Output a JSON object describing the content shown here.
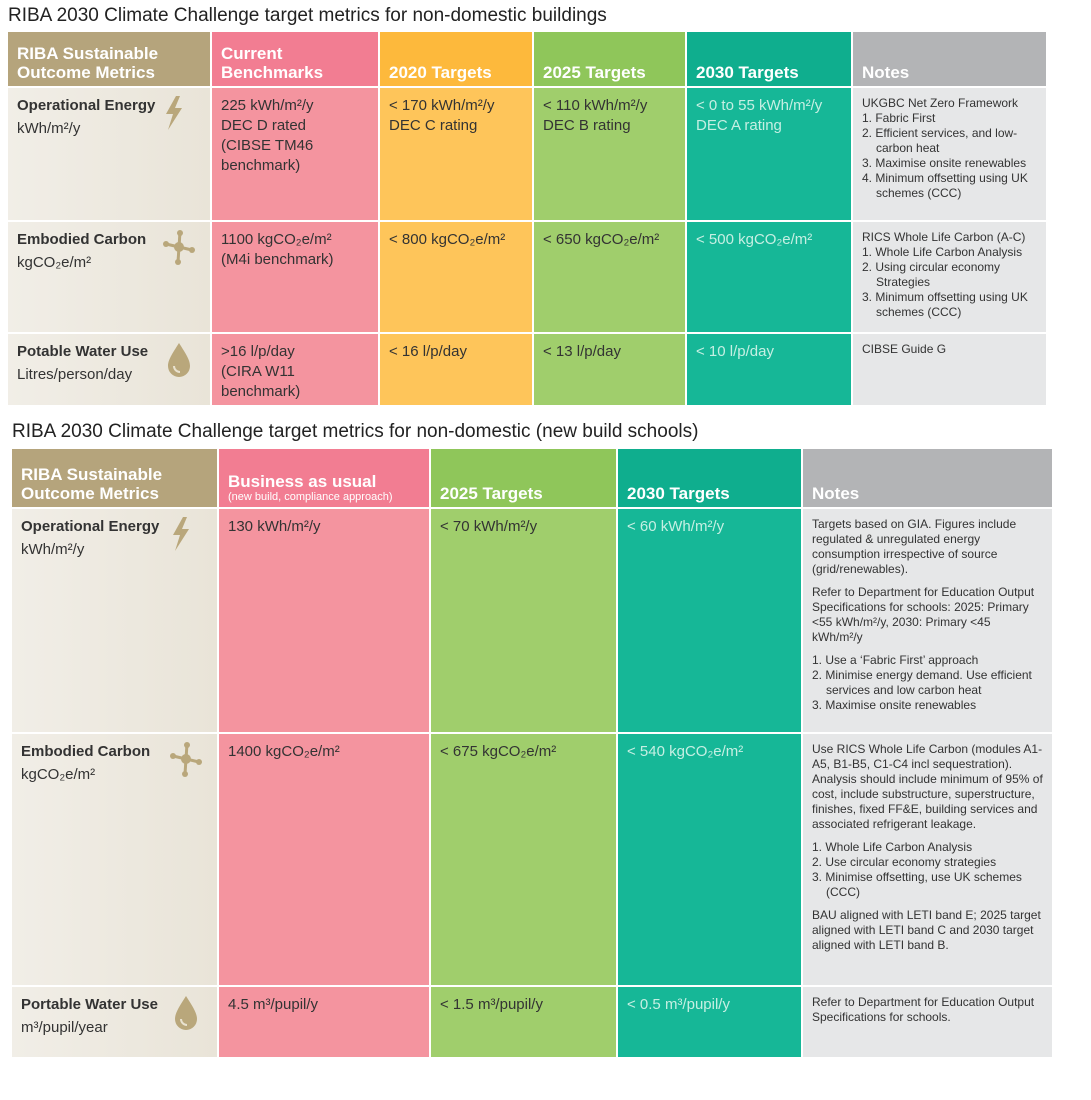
{
  "tables": [
    {
      "title": "RIBA 2030 Climate Challenge target metrics for non-domestic buildings",
      "header": [
        [
          "RIBA Sustainable Outcome Metrics"
        ],
        [
          "Current Benchmarks"
        ],
        [
          "2020 Targets"
        ],
        [
          "2025 Targets"
        ],
        [
          "2030 Targets"
        ],
        [
          "Notes"
        ]
      ],
      "rows": [
        {
          "metric": "Operational Energy",
          "unit": "kWh/m²/y",
          "cells": [
            [
              "225 kWh/m²/y",
              "DEC D rated",
              "(CIBSE TM46 benchmark)"
            ],
            [
              "< 170 kWh/m²/y",
              "DEC C rating"
            ],
            [
              "< 110 kWh/m²/y",
              "DEC B rating"
            ],
            [
              "< 0 to 55 kWh/m²/y",
              "DEC A rating"
            ],
            [
              "UKGBC Net Zero Framework",
              "1. Fabric First",
              "2. Efficient services, and low-carbon heat",
              "3. Maximise onsite renewables",
              "4. Minimum offsetting using UK schemes (CCC)"
            ]
          ]
        },
        {
          "metric": "Embodied Carbon",
          "unit": "kgCO₂e/m²",
          "cells": [
            [
              "1100 kgCO₂e/m²",
              "(M4i benchmark)"
            ],
            [
              "< 800 kgCO₂e/m²"
            ],
            [
              "< 650 kgCO₂e/m²"
            ],
            [
              "< 500 kgCO₂e/m²"
            ],
            [
              "RICS Whole Life Carbon (A-C)",
              "1. Whole Life Carbon Analysis",
              "2. Using circular economy Strategies",
              "3. Minimum offsetting using UK schemes (CCC)"
            ]
          ]
        },
        {
          "metric": "Potable Water Use",
          "unit": "Litres/person/day",
          "cells": [
            [
              ">16 l/p/day",
              "(CIRA W11 benchmark)"
            ],
            [
              "< 16 l/p/day"
            ],
            [
              "< 13 l/p/day"
            ],
            [
              "< 10 l/p/day"
            ],
            [
              "CIBSE Guide G"
            ]
          ]
        }
      ]
    },
    {
      "title": "RIBA 2030 Climate Challenge target metrics for non-domestic (new build schools)",
      "header": [
        [
          "RIBA Sustainable Outcome Metrics"
        ],
        [
          "Business as usual",
          "(new build, compliance approach)"
        ],
        [
          "2025 Targets"
        ],
        [
          "2030 Targets"
        ],
        [
          "Notes"
        ]
      ],
      "rows": [
        {
          "metric": "Operational Energy",
          "unit": "kWh/m²/y",
          "cells": [
            [
              "130 kWh/m²/y"
            ],
            [
              "< 70 kWh/m²/y"
            ],
            [
              "< 60 kWh/m²/y"
            ],
            [
              "Targets based on GIA. Figures include regulated & unregulated energy consumption irrespective of source (grid/renewables).",
              "Refer to Department for Education Output Specifications for schools: 2025: Primary <55 kWh/m²/y, 2030: Primary <45 kWh/m²/y",
              "1. Use a ‘Fabric First’ approach",
              "2. Minimise energy demand. Use efficient services and low carbon heat",
              "3. Maximise onsite renewables"
            ]
          ]
        },
        {
          "metric": "Embodied Carbon",
          "unit": "kgCO₂e/m²",
          "cells": [
            [
              "1400 kgCO₂e/m²"
            ],
            [
              "< 675 kgCO₂e/m²"
            ],
            [
              "< 540 kgCO₂e/m²"
            ],
            [
              "Use RICS Whole Life Carbon (modules A1-A5, B1-B5, C1-C4 incl sequestration). Analysis should include minimum of 95% of cost, include substructure, superstructure, finishes, fixed FF&E, building services and associated refrigerant leakage.",
              "1. Whole Life Carbon Analysis",
              "2. Use circular economy strategies",
              "3. Minimise offsetting, use UK schemes (CCC)",
              "BAU aligned with LETI band E; 2025 target aligned with LETI band C and 2030 target aligned with LETI band B."
            ]
          ]
        },
        {
          "metric": "Portable Water Use",
          "unit": "m³/pupil/year",
          "cells": [
            [
              "4.5 m³/pupil/y"
            ],
            [
              "< 1.5 m³/pupil/y"
            ],
            [
              "< 0.5 m³/pupil/y"
            ],
            [
              "Refer to Department for Education Output Specifications for schools."
            ]
          ]
        }
      ]
    }
  ]
}
